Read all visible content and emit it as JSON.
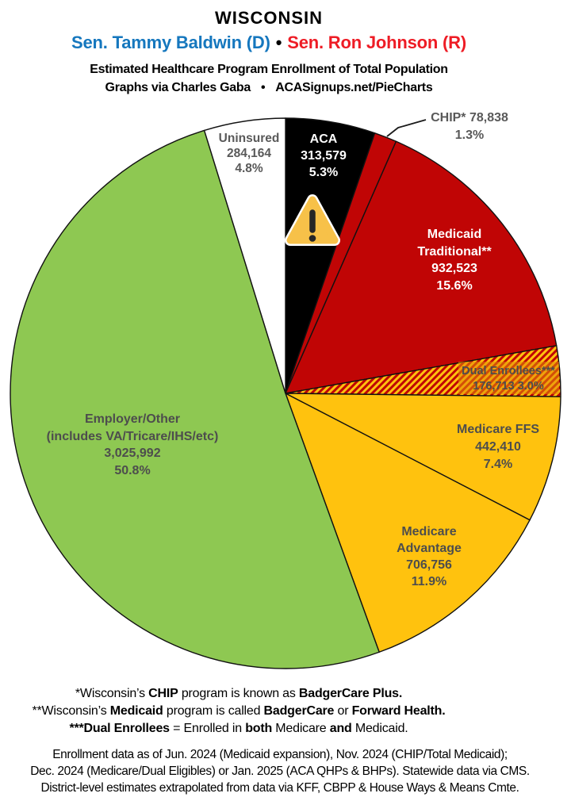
{
  "header": {
    "state": "WISCONSIN",
    "senators": {
      "dem": "Sen. Tammy Baldwin (D)",
      "bullet": "•",
      "rep": "Sen. Ron Johnson (R)"
    },
    "subtitle": "Estimated Healthcare Program Enrollment of Total Population",
    "credit": {
      "left": "Graphs via Charles Gaba",
      "bullet": "•",
      "right": "ACASignups.net/PieCharts"
    },
    "colors": {
      "dem_blue": "#1577BE",
      "rep_red": "#EE1C25"
    }
  },
  "chart_data": {
    "type": "pie",
    "title": "Estimated Healthcare Program Enrollment of Total Population",
    "units": "people enrolled",
    "total": 5960975,
    "start_angle": "12 o'clock",
    "direction": "clockwise",
    "legend_position": "labels-on-slices",
    "slices": [
      {
        "id": "aca",
        "name": "ACA",
        "value": 313579,
        "pct": 5.3,
        "color": "#000000",
        "label_lines": [
          "ACA",
          "313,579",
          "5.3%"
        ],
        "label_color": "#FFFFFF",
        "icon": "warning-icon"
      },
      {
        "id": "chip",
        "name": "CHIP*",
        "value": 78838,
        "pct": 1.3,
        "color": "#C00505",
        "label_lines": [
          "CHIP* 78,838",
          "1.3%"
        ],
        "label_color": "#595959",
        "external_label": true
      },
      {
        "id": "medicaid",
        "name": "Medicaid Traditional**",
        "value": 932523,
        "pct": 15.6,
        "color": "#C00505",
        "label_lines": [
          "Medicaid",
          "Traditional**",
          "932,523",
          "15.6%"
        ],
        "label_color": "#FFFFFF"
      },
      {
        "id": "dual",
        "name": "Dual Enrollees***",
        "value": 176713,
        "pct": 3.0,
        "color": "#C00505",
        "hatch_color": "#FFC20E",
        "fill_style": "diagonal-hatch",
        "label_lines": [
          "Dual Enrollees***",
          "176,713 3.0%"
        ],
        "label_color": "#4D4D4D"
      },
      {
        "id": "medicare_ffs",
        "name": "Medicare FFS",
        "value": 442410,
        "pct": 7.4,
        "color": "#FFC20E",
        "label_lines": [
          "Medicare FFS",
          "442,410",
          "7.4%"
        ],
        "label_color": "#4D4D4D"
      },
      {
        "id": "medicare_advantage",
        "name": "Medicare Advantage",
        "value": 706756,
        "pct": 11.9,
        "color": "#FFC20E",
        "label_lines": [
          "Medicare",
          "Advantage",
          "706,756",
          "11.9%"
        ],
        "label_color": "#4D4D4D"
      },
      {
        "id": "employer",
        "name": "Employer/Other (includes VA/Tricare/IHS/etc)",
        "value": 3025992,
        "pct": 50.8,
        "color": "#8EC852",
        "label_lines": [
          "Employer/Other",
          "(includes VA/Tricare/IHS/etc)",
          "3,025,992",
          "50.8%"
        ],
        "label_color": "#4D4D4D"
      },
      {
        "id": "uninsured",
        "name": "Uninsured",
        "value": 284164,
        "pct": 4.8,
        "color": "#FFFFFF",
        "label_lines": [
          "Uninsured",
          "284,164",
          "4.8%"
        ],
        "label_color": "#595959"
      }
    ]
  },
  "footnotes": [
    {
      "segments": [
        {
          "t": "*Wisconsin’s "
        },
        {
          "t": "CHIP",
          "b": true
        },
        {
          "t": " program is known as "
        },
        {
          "t": "BadgerCare Plus.",
          "b": true
        }
      ]
    },
    {
      "segments": [
        {
          "t": "**Wisconsin’s "
        },
        {
          "t": "Medicaid",
          "b": true
        },
        {
          "t": " program is called "
        },
        {
          "t": "BadgerCare",
          "b": true
        },
        {
          "t": " or "
        },
        {
          "t": "Forward Health.",
          "b": true
        }
      ]
    },
    {
      "segments": [
        {
          "t": "***Dual Enrollees",
          "b": true
        },
        {
          "t": " = Enrolled in "
        },
        {
          "t": "both",
          "b": true
        },
        {
          "t": " Medicare "
        },
        {
          "t": "and",
          "b": true
        },
        {
          "t": " Medicaid."
        }
      ]
    }
  ],
  "source_lines": [
    "Enrollment data as of Jun. 2024 (Medicaid expansion), Nov. 2024 (CHIP/Total Medicaid);",
    "Dec. 2024 (Medicare/Dual Eligibles) or Jan. 2025 (ACA QHPs & BHPs). Statewide data via CMS.",
    "District-level estimates extrapolated from data via KFF, CBPP & House Ways & Means Cmte."
  ]
}
